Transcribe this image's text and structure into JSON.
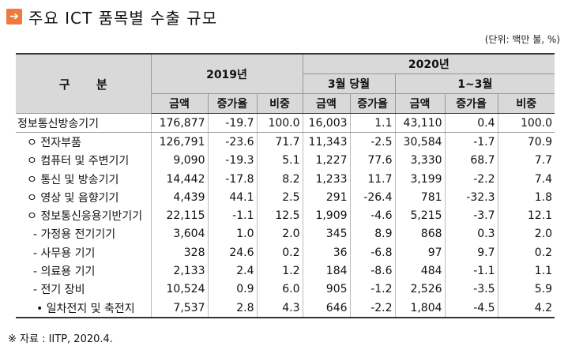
{
  "title": {
    "icon": "arrow-right-icon",
    "text": "주요 ICT 품목별 수출 규모",
    "accent": "#ee7b3c"
  },
  "unit": "(단위: 백만 불, %)",
  "header": {
    "gubun": "구 분",
    "y2019": "2019년",
    "y2020": "2020년",
    "march": "3월 당월",
    "jan_mar": "1~3월",
    "amount": "금액",
    "growth": "증가율",
    "share": "비중"
  },
  "rows": [
    {
      "label": "정보통신방송기기",
      "v": [
        "176,877",
        "-19.7",
        "100.0",
        "16,003",
        "1.1",
        "43,110",
        "0.4",
        "100.0"
      ]
    },
    {
      "label": "ㅇ 전자부품",
      "v": [
        "126,791",
        "-23.6",
        "71.7",
        "11,343",
        "-2.5",
        "30,584",
        "-1.7",
        "70.9"
      ]
    },
    {
      "label": "ㅇ 컴퓨터 및 주변기기",
      "v": [
        "9,090",
        "-19.3",
        "5.1",
        "1,227",
        "77.6",
        "3,330",
        "68.7",
        "7.7"
      ]
    },
    {
      "label": "ㅇ 통신 및 방송기기",
      "v": [
        "14,442",
        "-17.8",
        "8.2",
        "1,233",
        "11.7",
        "3,199",
        "-2.2",
        "7.4"
      ]
    },
    {
      "label": "ㅇ 영상 및 음향기기",
      "v": [
        "4,439",
        "44.1",
        "2.5",
        "291",
        "-26.4",
        "781",
        "-32.3",
        "1.8"
      ]
    },
    {
      "label": "ㅇ 정보통신응용기반기기",
      "v": [
        "22,115",
        "-1.1",
        "12.5",
        "1,909",
        "-4.6",
        "5,215",
        "-3.7",
        "12.1"
      ]
    },
    {
      "label": "- 가정용 전기기기",
      "v": [
        "3,604",
        "1.0",
        "2.0",
        "345",
        "8.9",
        "868",
        "0.3",
        "2.0"
      ]
    },
    {
      "label": "- 사무용 기기",
      "v": [
        "328",
        "24.6",
        "0.2",
        "36",
        "-6.8",
        "97",
        "9.7",
        "0.2"
      ]
    },
    {
      "label": "- 의료용 기기",
      "v": [
        "2,133",
        "2.4",
        "1.2",
        "184",
        "-8.6",
        "484",
        "-1.1",
        "1.1"
      ]
    },
    {
      "label": "- 전기 장비",
      "v": [
        "10,524",
        "0.9",
        "6.0",
        "905",
        "-1.2",
        "2,526",
        "-3.5",
        "5.9"
      ]
    },
    {
      "label": "• 일차전지 및 축전지",
      "v": [
        "7,537",
        "2.8",
        "4.3",
        "646",
        "-2.2",
        "1,804",
        "-4.5",
        "4.2"
      ]
    }
  ],
  "source": "※ 자료 : IITP, 2020.4."
}
